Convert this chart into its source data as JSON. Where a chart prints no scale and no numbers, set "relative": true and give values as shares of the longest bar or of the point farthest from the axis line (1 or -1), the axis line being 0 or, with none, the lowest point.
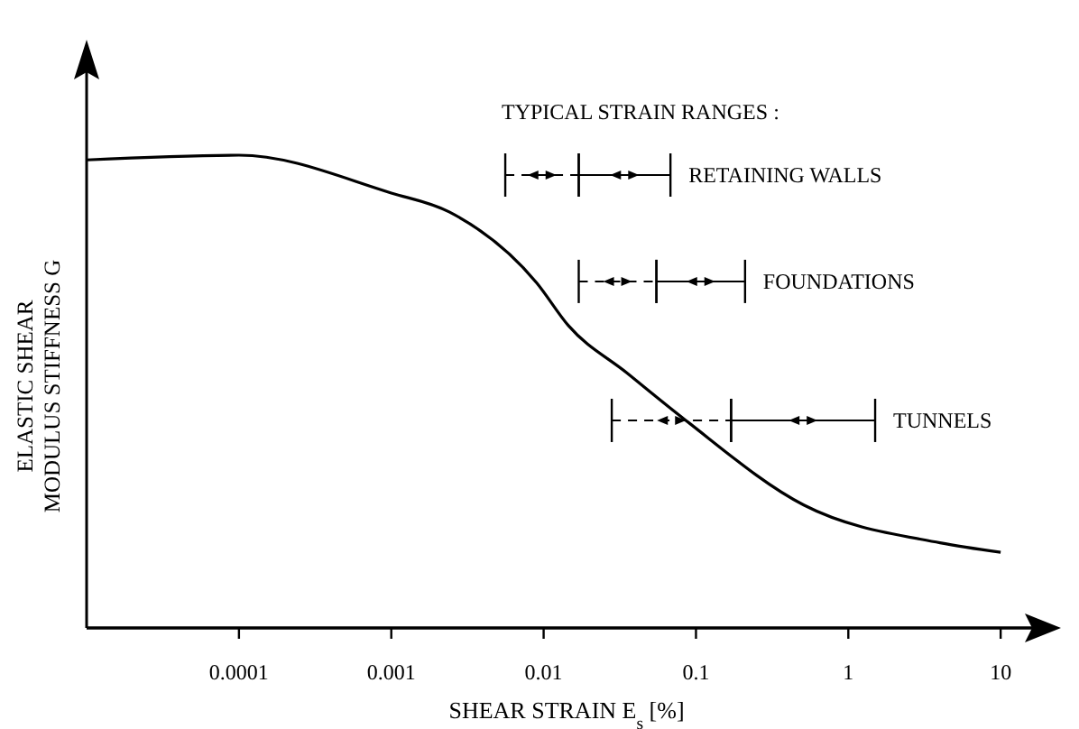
{
  "chart_data": {
    "type": "line",
    "relative": true,
    "log": "x",
    "xlabel": "SHEAR STRAIN E$_{s}$ [%]",
    "ylabel": "ELASTIC SHEAR\nMODULUS STIFFNESS G",
    "xlim": [
      1e-05,
      20
    ],
    "xticks": [
      0.0001,
      0.001,
      0.01,
      0.1,
      1,
      10
    ],
    "x": [
      1e-05,
      0.0001,
      0.001,
      0.0024,
      0.009,
      0.0145,
      0.035,
      0.085,
      0.51,
      4,
      10
    ],
    "series": [
      {
        "color": "#000000",
        "values": [
          0.99,
          1,
          0.92,
          0.88,
          0.73,
          0.64,
          0.54,
          0.44,
          0.26,
          0.18,
          0.16
        ]
      },
      {
        "color": "#000000",
        "x": [
          0.0056,
          0.017
        ],
        "values": [
          0.958,
          0.958
        ],
        "line_style": "dashed"
      },
      {
        "name": "RETAINING WALLS",
        "color": "#000000",
        "x": [
          0.017,
          0.068
        ],
        "values": [
          0.958,
          0.958
        ],
        "line_style": "solid"
      },
      {
        "color": "#000000",
        "x": [
          0.017,
          0.055
        ],
        "values": [
          0.733,
          0.733
        ],
        "line_style": "dashed"
      },
      {
        "name": "FOUNDATIONS",
        "color": "#000000",
        "x": [
          0.055,
          0.21
        ],
        "values": [
          0.733,
          0.733
        ],
        "line_style": "solid"
      },
      {
        "color": "#000000",
        "x": [
          0.028,
          0.17
        ],
        "values": [
          0.439,
          0.439
        ],
        "line_style": "dashed"
      },
      {
        "name": "TUNNELS",
        "color": "#000000",
        "x": [
          0.17,
          1.5
        ],
        "values": [
          0.439,
          0.439
        ],
        "line_style": "solid"
      }
    ],
    "annotations": [
      "TYPICAL STRAIN RANGES :"
    ],
    "legend": "top right"
  }
}
